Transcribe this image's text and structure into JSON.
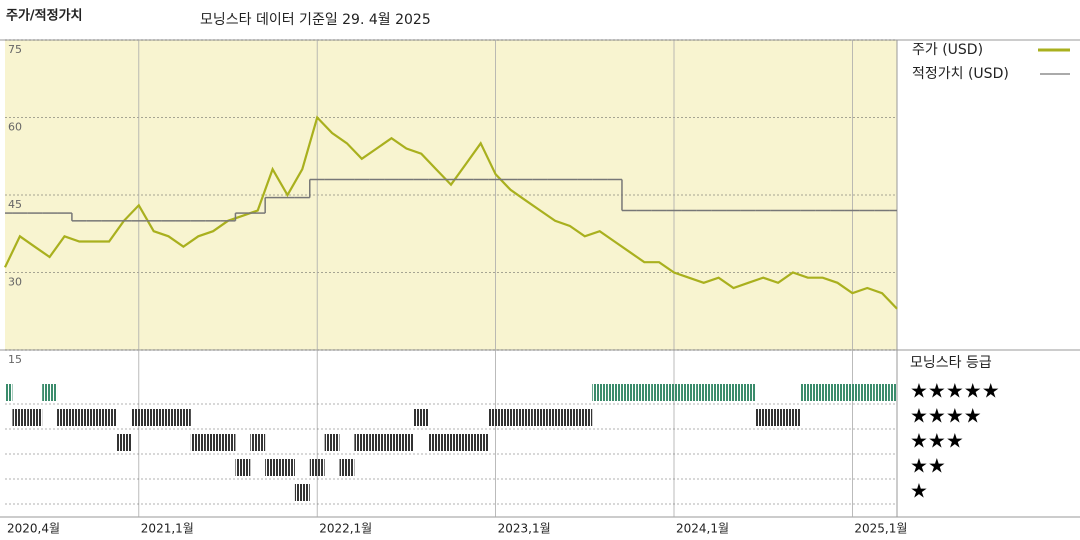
{
  "chart_data": {
    "type": "line",
    "title": "주가/적정가치",
    "subtitle": "모닝스타 데이터 기준일 29. 4월 2025",
    "x": [
      "2020-04",
      "2020-05",
      "2020-06",
      "2020-07",
      "2020-08",
      "2020-09",
      "2020-10",
      "2020-11",
      "2020-12",
      "2021-01",
      "2021-02",
      "2021-03",
      "2021-04",
      "2021-05",
      "2021-06",
      "2021-07",
      "2021-08",
      "2021-09",
      "2021-10",
      "2021-11",
      "2021-12",
      "2022-01",
      "2022-02",
      "2022-03",
      "2022-04",
      "2022-05",
      "2022-06",
      "2022-07",
      "2022-08",
      "2022-09",
      "2022-10",
      "2022-11",
      "2022-12",
      "2023-01",
      "2023-02",
      "2023-03",
      "2023-04",
      "2023-05",
      "2023-06",
      "2023-07",
      "2023-08",
      "2023-09",
      "2023-10",
      "2023-11",
      "2023-12",
      "2024-01",
      "2024-02",
      "2024-03",
      "2024-04",
      "2024-05",
      "2024-06",
      "2024-07",
      "2024-08",
      "2024-09",
      "2024-10",
      "2024-11",
      "2024-12",
      "2025-01",
      "2025-02",
      "2025-03",
      "2025-04"
    ],
    "series": [
      {
        "name": "주가 (USD)",
        "color": "#a9b01e",
        "values": [
          31,
          37,
          35,
          33,
          37,
          36,
          36,
          36,
          40,
          43,
          38,
          37,
          35,
          37,
          38,
          40,
          41,
          42,
          50,
          45,
          50,
          60,
          57,
          55,
          52,
          54,
          56,
          54,
          53,
          50,
          47,
          51,
          55,
          49,
          46,
          44,
          42,
          40,
          39,
          37,
          38,
          36,
          34,
          32,
          32,
          30,
          29,
          28,
          29,
          27,
          28,
          29,
          28,
          30,
          29,
          29,
          28,
          26,
          27,
          26,
          23
        ]
      },
      {
        "name": "적정가치 (USD)",
        "color": "#777777",
        "step": true,
        "values": [
          41.5,
          41.5,
          41.5,
          41.5,
          41.5,
          40,
          40,
          40,
          40,
          40,
          40,
          40,
          40,
          40,
          40,
          40,
          41.5,
          41.5,
          44.5,
          44.5,
          44.5,
          48,
          48,
          48,
          48,
          48,
          48,
          48,
          48,
          48,
          48,
          48,
          48,
          48,
          48,
          48,
          48,
          48,
          48,
          48,
          48,
          48,
          42,
          42,
          42,
          42,
          42,
          42,
          42,
          42,
          42,
          42,
          42,
          42,
          42,
          42,
          42,
          42,
          42,
          42,
          42
        ]
      }
    ],
    "ylim": [
      15,
      75
    ],
    "yticks": [
      15,
      30,
      45,
      60,
      75
    ],
    "xticks": [
      {
        "value": "2020-04",
        "label": "2020,4월"
      },
      {
        "value": "2021-01",
        "label": "2021,1월"
      },
      {
        "value": "2022-01",
        "label": "2022,1월"
      },
      {
        "value": "2023-01",
        "label": "2023,1월"
      },
      {
        "value": "2024-01",
        "label": "2024,1월"
      },
      {
        "value": "2025-01",
        "label": "2025,1월"
      }
    ],
    "plot_background": "#f8f4d0",
    "rating": {
      "title": "모닝스타 등급",
      "levels": [
        5,
        4,
        3,
        2,
        1
      ],
      "labels": [
        "★★★★★",
        "★★★★",
        "★★★",
        "★★",
        "★"
      ],
      "colors": [
        "#3b8c6c",
        "#333333",
        "#333333",
        "#333333",
        "#333333"
      ],
      "values": [
        5,
        4,
        4,
        5,
        4,
        4,
        4,
        4,
        3,
        4,
        4,
        4,
        4,
        3,
        3,
        3,
        2,
        3,
        2,
        2,
        1,
        2,
        3,
        2,
        3,
        3,
        3,
        3,
        4,
        3,
        3,
        3,
        3,
        4,
        4,
        4,
        4,
        4,
        4,
        4,
        5,
        5,
        5,
        5,
        5,
        5,
        5,
        5,
        5,
        5,
        5,
        4,
        4,
        4,
        5,
        5,
        5,
        5,
        5,
        5,
        5
      ]
    }
  }
}
